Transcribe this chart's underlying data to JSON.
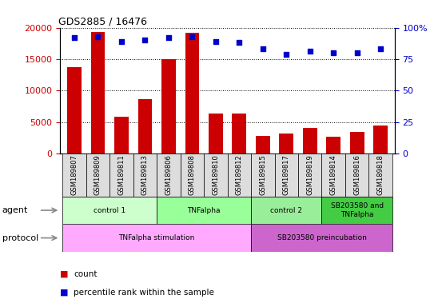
{
  "title": "GDS2885 / 16476",
  "samples": [
    "GSM189807",
    "GSM189809",
    "GSM189811",
    "GSM189813",
    "GSM189806",
    "GSM189808",
    "GSM189810",
    "GSM189812",
    "GSM189815",
    "GSM189817",
    "GSM189819",
    "GSM189814",
    "GSM189816",
    "GSM189818"
  ],
  "counts": [
    13700,
    19300,
    5900,
    8700,
    15000,
    19200,
    6400,
    6400,
    2800,
    3200,
    4100,
    2700,
    3400,
    4400
  ],
  "percentile_ranks": [
    92,
    93,
    89,
    90,
    92,
    93,
    89,
    88,
    83,
    79,
    81,
    80,
    80,
    83
  ],
  "ylim_left": [
    0,
    20000
  ],
  "ylim_right": [
    0,
    100
  ],
  "yticks_left": [
    0,
    5000,
    10000,
    15000,
    20000
  ],
  "yticks_right": [
    0,
    25,
    50,
    75,
    100
  ],
  "bar_color": "#cc0000",
  "dot_color": "#0000cc",
  "agent_groups": [
    {
      "label": "control 1",
      "start": 0,
      "end": 4,
      "color": "#ccffcc"
    },
    {
      "label": "TNFalpha",
      "start": 4,
      "end": 8,
      "color": "#99ff99"
    },
    {
      "label": "control 2",
      "start": 8,
      "end": 11,
      "color": "#99ee99"
    },
    {
      "label": "SB203580 and\nTNFalpha",
      "start": 11,
      "end": 14,
      "color": "#44cc44"
    }
  ],
  "protocol_groups": [
    {
      "label": "TNFalpha stimulation",
      "start": 0,
      "end": 8,
      "color": "#ffaaff"
    },
    {
      "label": "SB203580 preincubation",
      "start": 8,
      "end": 14,
      "color": "#cc66cc"
    }
  ],
  "legend_count_color": "#cc0000",
  "legend_dot_color": "#0000cc",
  "background_color": "#ffffff",
  "tick_label_color_left": "#cc0000",
  "tick_label_color_right": "#0000cc",
  "sample_box_color": "#dddddd",
  "left_label_color": "#888888"
}
